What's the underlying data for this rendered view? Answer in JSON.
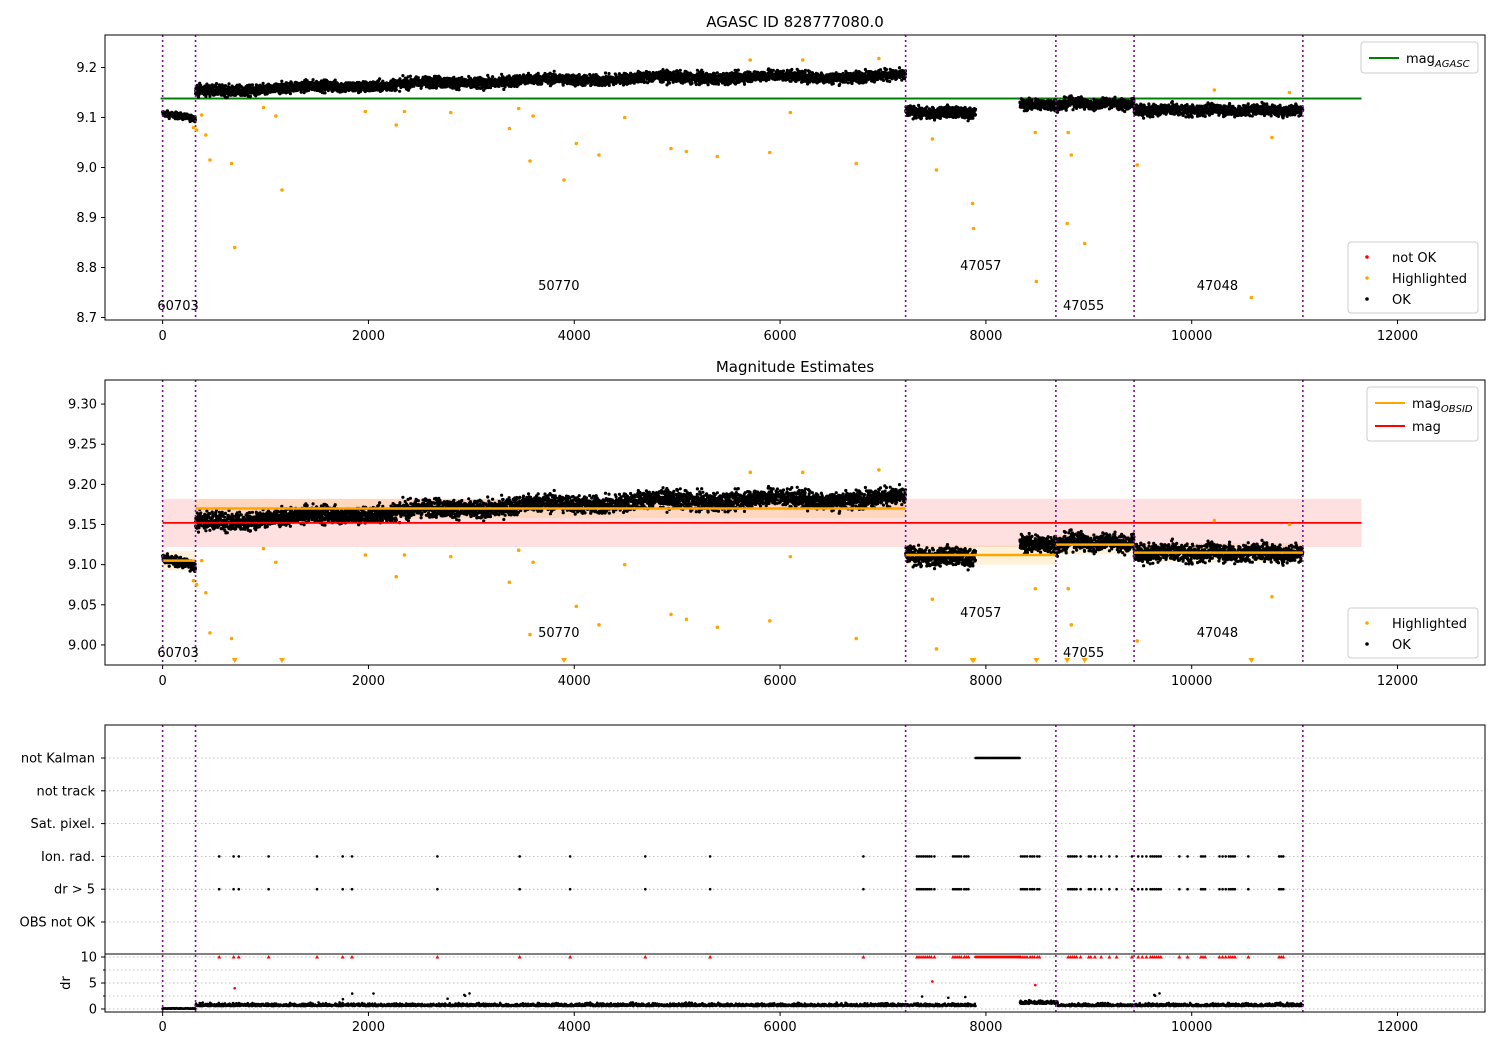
{
  "panels": [
    {
      "id": "agasc",
      "title": "AGASC ID 828777080.0",
      "y_ticks": [
        8.7,
        8.8,
        8.9,
        9.0,
        9.1,
        9.2
      ],
      "y_range": [
        8.695,
        9.265
      ],
      "legend_lines": [
        {
          "label": "mag",
          "sub": "AGASC",
          "color": "#008000"
        }
      ],
      "legend_points": [
        {
          "label": "not OK",
          "color": "#ff0000"
        },
        {
          "label": "Highlighted",
          "color": "#ffa500"
        },
        {
          "label": "OK",
          "color": "#000000"
        }
      ],
      "obsid_labels": [
        {
          "text": "60703",
          "x": 150,
          "y": 8.715
        },
        {
          "text": "50770",
          "x": 3850,
          "y": 8.755
        },
        {
          "text": "47057",
          "x": 7950,
          "y": 8.795
        },
        {
          "text": "47055",
          "x": 8950,
          "y": 8.715
        },
        {
          "text": "47048",
          "x": 10250,
          "y": 8.755
        }
      ]
    },
    {
      "id": "estimates",
      "title": "Magnitude Estimates",
      "y_ticks": [
        9.0,
        9.05,
        9.1,
        9.15,
        9.2,
        9.25,
        9.3
      ],
      "y_range": [
        8.975,
        9.33
      ],
      "legend_lines": [
        {
          "label": "mag",
          "sub": "OBSID",
          "color": "#ffa500"
        },
        {
          "label": "mag",
          "sub": "",
          "color": "#ff0000"
        }
      ],
      "legend_points": [
        {
          "label": "Highlighted",
          "color": "#ffa500"
        },
        {
          "label": "OK",
          "color": "#000000"
        }
      ],
      "obsid_labels": [
        {
          "text": "60703",
          "x": 150,
          "y": 8.985
        },
        {
          "text": "50770",
          "x": 3850,
          "y": 9.01
        },
        {
          "text": "47057",
          "x": 7950,
          "y": 9.035
        },
        {
          "text": "47055",
          "x": 8950,
          "y": 8.985
        },
        {
          "text": "47048",
          "x": 10250,
          "y": 9.01
        }
      ]
    }
  ],
  "flags_panel": {
    "rows": [
      "not Kalman",
      "not track",
      "Sat. pixel.",
      "Ion. rad.",
      "dr > 5",
      "OBS not OK"
    ],
    "dr_ticks": [
      0,
      5,
      10
    ],
    "dr_label": "dr"
  },
  "x_ticks": [
    0,
    2000,
    4000,
    6000,
    8000,
    10000,
    12000
  ],
  "chart_data": [
    {
      "type": "scatter",
      "title": "AGASC ID 828777080.0",
      "x_range": [
        -560,
        12850
      ],
      "y_range": [
        8.695,
        9.265
      ],
      "obs_boundaries": [
        0,
        320,
        7220,
        8680,
        9440,
        11080
      ],
      "mag_agasc": 9.138,
      "obsid_segments": [
        {
          "obsid": "60703",
          "x": [
            0,
            320
          ],
          "mag": 9.105
        },
        {
          "obsid": "50770",
          "x": [
            320,
            7220
          ],
          "mag": 9.17
        },
        {
          "obsid": "47057",
          "x": [
            7220,
            8680
          ],
          "mag": 9.112
        },
        {
          "obsid": "47055",
          "x": [
            8680,
            9440
          ],
          "mag": 9.125
        },
        {
          "obsid": "47048",
          "x": [
            9440,
            11080
          ],
          "mag": 9.115
        }
      ],
      "highlighted": [
        [
          300,
          9.08
        ],
        [
          330,
          9.075
        ],
        [
          380,
          9.105
        ],
        [
          420,
          9.065
        ],
        [
          460,
          9.015
        ],
        [
          670,
          9.008
        ],
        [
          700,
          8.84
        ],
        [
          980,
          9.12
        ],
        [
          1100,
          9.103
        ],
        [
          1160,
          8.955
        ],
        [
          1970,
          9.112
        ],
        [
          2270,
          9.085
        ],
        [
          2350,
          9.112
        ],
        [
          2800,
          9.11
        ],
        [
          3370,
          9.078
        ],
        [
          3460,
          9.118
        ],
        [
          3570,
          9.013
        ],
        [
          3600,
          9.103
        ],
        [
          3900,
          8.975
        ],
        [
          4020,
          9.048
        ],
        [
          4240,
          9.025
        ],
        [
          4490,
          9.1
        ],
        [
          4940,
          9.038
        ],
        [
          5090,
          9.032
        ],
        [
          5390,
          9.022
        ],
        [
          5710,
          9.215
        ],
        [
          5900,
          9.03
        ],
        [
          6100,
          9.11
        ],
        [
          6220,
          9.215
        ],
        [
          6740,
          9.008
        ],
        [
          6960,
          9.218
        ],
        [
          7480,
          9.057
        ],
        [
          7520,
          8.995
        ],
        [
          7870,
          8.928
        ],
        [
          7880,
          8.878
        ],
        [
          8480,
          9.07
        ],
        [
          8490,
          8.772
        ],
        [
          8790,
          8.888
        ],
        [
          8800,
          9.07
        ],
        [
          8830,
          9.025
        ],
        [
          8960,
          8.848
        ],
        [
          9470,
          9.005
        ],
        [
          10220,
          9.155
        ],
        [
          10580,
          8.74
        ],
        [
          10780,
          9.06
        ],
        [
          10950,
          9.15
        ]
      ],
      "mag_mean": 9.152,
      "mag_band": [
        9.122,
        9.182
      ]
    },
    {
      "type": "flags",
      "dr_ylim": [
        0,
        10
      ],
      "not_kalman_x": [
        7900,
        8330
      ],
      "flagged_x": [
        550,
        690,
        740,
        1030,
        1500,
        1750,
        1840,
        2670,
        3470,
        3960,
        4690,
        5320,
        6810,
        7330,
        7350,
        7370,
        7390,
        7410,
        7430,
        7450,
        7470,
        7500,
        7680,
        7700,
        7720,
        7740,
        7760,
        7790,
        7810,
        7830,
        8340,
        8360,
        8380,
        8400,
        8430,
        8450,
        8470,
        8500,
        8520,
        8800,
        8820,
        8840,
        8860,
        8880,
        8920,
        9000,
        9020,
        9060,
        9120,
        9200,
        9270,
        9420,
        9480,
        9520,
        9560,
        9600,
        9620,
        9640,
        9660,
        9680,
        9700,
        9880,
        9960,
        10090,
        10110,
        10130,
        10270,
        10300,
        10330,
        10360,
        10380,
        10400,
        10420,
        10550,
        10850,
        10870,
        10890
      ]
    }
  ]
}
